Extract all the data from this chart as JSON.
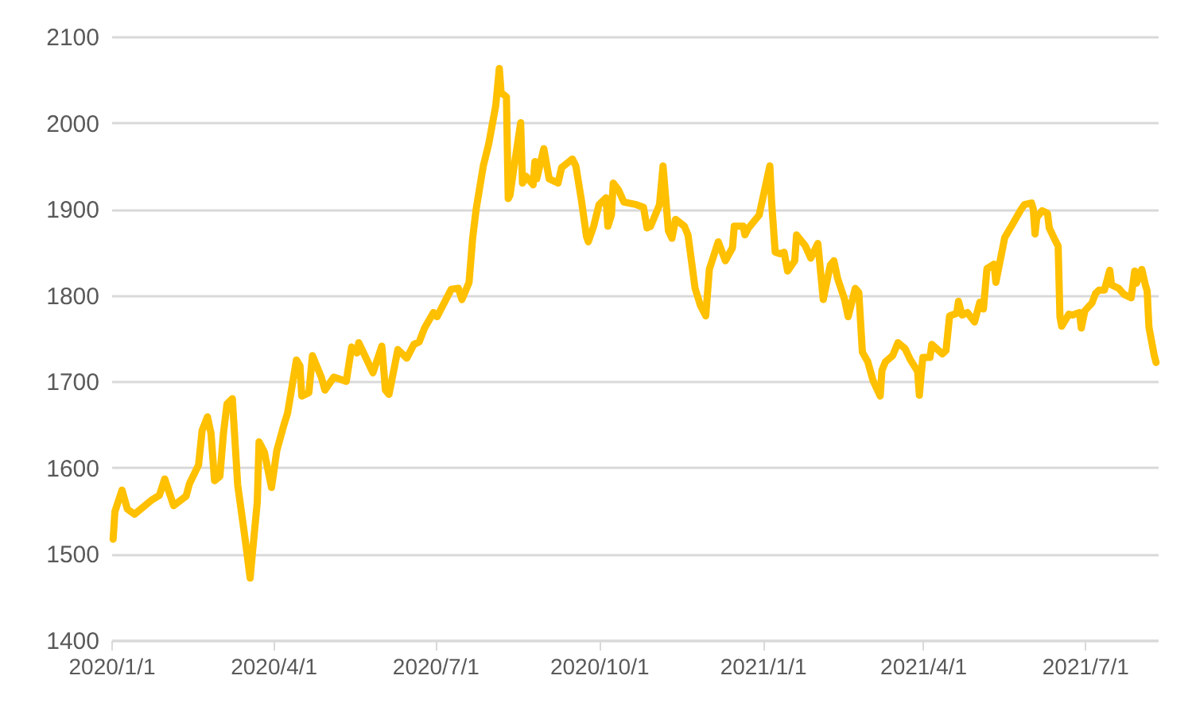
{
  "chart_data": {
    "type": "line",
    "xlim": [
      "2020-01-01",
      "2021-08-11"
    ],
    "ylim": [
      1400,
      2100
    ],
    "yticks": [
      1400,
      1500,
      1600,
      1700,
      1800,
      1900,
      2000,
      2100
    ],
    "xticks": [
      {
        "value": "2020-01-01",
        "label": "2020/1/1"
      },
      {
        "value": "2020-04-01",
        "label": "2020/4/1"
      },
      {
        "value": "2020-07-01",
        "label": "2020/7/1"
      },
      {
        "value": "2020-10-01",
        "label": "2020/10/1"
      },
      {
        "value": "2021-01-01",
        "label": "2021/1/1"
      },
      {
        "value": "2021-04-01",
        "label": "2021/4/1"
      },
      {
        "value": "2021-07-01",
        "label": "2021/7/1"
      }
    ],
    "grid": "y",
    "marker": "none",
    "line_style": "solid",
    "x": [
      "2020-01-02",
      "2020-01-03",
      "2020-01-07",
      "2020-01-10",
      "2020-01-14",
      "2020-01-21",
      "2020-01-24",
      "2020-01-28",
      "2020-01-31",
      "2020-02-05",
      "2020-02-12",
      "2020-02-14",
      "2020-02-19",
      "2020-02-21",
      "2020-02-24",
      "2020-02-26",
      "2020-02-28",
      "2020-03-02",
      "2020-03-04",
      "2020-03-06",
      "2020-03-09",
      "2020-03-12",
      "2020-03-16",
      "2020-03-19",
      "2020-03-20",
      "2020-03-23",
      "2020-03-24",
      "2020-03-27",
      "2020-03-31",
      "2020-04-03",
      "2020-04-07",
      "2020-04-09",
      "2020-04-14",
      "2020-04-16",
      "2020-04-17",
      "2020-04-21",
      "2020-04-23",
      "2020-04-28",
      "2020-04-30",
      "2020-05-05",
      "2020-05-08",
      "2020-05-12",
      "2020-05-15",
      "2020-05-18",
      "2020-05-19",
      "2020-05-22",
      "2020-05-27",
      "2020-06-01",
      "2020-06-03",
      "2020-06-05",
      "2020-06-10",
      "2020-06-15",
      "2020-06-19",
      "2020-06-22",
      "2020-06-25",
      "2020-06-30",
      "2020-07-02",
      "2020-07-07",
      "2020-07-10",
      "2020-07-14",
      "2020-07-16",
      "2020-07-20",
      "2020-07-22",
      "2020-07-24",
      "2020-07-28",
      "2020-07-31",
      "2020-08-04",
      "2020-08-06",
      "2020-08-07",
      "2020-08-10",
      "2020-08-11",
      "2020-08-12",
      "2020-08-14",
      "2020-08-18",
      "2020-08-19",
      "2020-08-21",
      "2020-08-25",
      "2020-08-26",
      "2020-08-27",
      "2020-08-31",
      "2020-09-03",
      "2020-09-08",
      "2020-09-10",
      "2020-09-16",
      "2020-09-18",
      "2020-09-21",
      "2020-09-24",
      "2020-09-25",
      "2020-09-28",
      "2020-10-01",
      "2020-10-05",
      "2020-10-06",
      "2020-10-08",
      "2020-10-09",
      "2020-10-12",
      "2020-10-15",
      "2020-10-22",
      "2020-10-26",
      "2020-10-28",
      "2020-10-30",
      "2020-11-04",
      "2020-11-06",
      "2020-11-09",
      "2020-11-11",
      "2020-11-13",
      "2020-11-18",
      "2020-11-20",
      "2020-11-24",
      "2020-11-27",
      "2020-11-30",
      "2020-12-02",
      "2020-12-07",
      "2020-12-11",
      "2020-12-15",
      "2020-12-16",
      "2020-12-21",
      "2020-12-22",
      "2020-12-24",
      "2020-12-30",
      "2021-01-05",
      "2021-01-06",
      "2021-01-08",
      "2021-01-11",
      "2021-01-13",
      "2021-01-15",
      "2021-01-19",
      "2021-01-20",
      "2021-01-25",
      "2021-01-28",
      "2021-02-01",
      "2021-02-04",
      "2021-02-08",
      "2021-02-10",
      "2021-02-12",
      "2021-02-16",
      "2021-02-18",
      "2021-02-22",
      "2021-02-24",
      "2021-02-26",
      "2021-03-01",
      "2021-03-04",
      "2021-03-08",
      "2021-03-09",
      "2021-03-11",
      "2021-03-15",
      "2021-03-18",
      "2021-03-22",
      "2021-03-25",
      "2021-03-29",
      "2021-03-30",
      "2021-03-31",
      "2021-04-01",
      "2021-04-05",
      "2021-04-06",
      "2021-04-12",
      "2021-04-14",
      "2021-04-16",
      "2021-04-20",
      "2021-04-21",
      "2021-04-23",
      "2021-04-26",
      "2021-04-30",
      "2021-05-03",
      "2021-05-05",
      "2021-05-07",
      "2021-05-11",
      "2021-05-12",
      "2021-05-17",
      "2021-05-21",
      "2021-05-26",
      "2021-05-28",
      "2021-06-01",
      "2021-06-02",
      "2021-06-03",
      "2021-06-04",
      "2021-06-07",
      "2021-06-10",
      "2021-06-11",
      "2021-06-14",
      "2021-06-16",
      "2021-06-17",
      "2021-06-18",
      "2021-06-22",
      "2021-06-24",
      "2021-06-28",
      "2021-06-29",
      "2021-07-01",
      "2021-07-05",
      "2021-07-07",
      "2021-07-09",
      "2021-07-12",
      "2021-07-15",
      "2021-07-16",
      "2021-07-20",
      "2021-07-23",
      "2021-07-27",
      "2021-07-29",
      "2021-07-30",
      "2021-08-02",
      "2021-08-04",
      "2021-08-05",
      "2021-08-06",
      "2021-08-09",
      "2021-08-10"
    ],
    "series": [
      {
        "color": "#ffc000",
        "values": [
          1517,
          1549,
          1574,
          1552,
          1546,
          1558,
          1563,
          1568,
          1587,
          1556,
          1567,
          1582,
          1603,
          1643,
          1659,
          1640,
          1585,
          1590,
          1640,
          1674,
          1680,
          1580,
          1520,
          1472,
          1495,
          1560,
          1630,
          1618,
          1577,
          1620,
          1650,
          1663,
          1725,
          1718,
          1683,
          1687,
          1730,
          1705,
          1690,
          1705,
          1703,
          1700,
          1740,
          1733,
          1745,
          1732,
          1710,
          1741,
          1690,
          1685,
          1737,
          1727,
          1743,
          1746,
          1762,
          1780,
          1775,
          1795,
          1807,
          1808,
          1795,
          1815,
          1866,
          1900,
          1950,
          1975,
          2020,
          2063,
          2035,
          2030,
          1912,
          1916,
          1945,
          2000,
          1930,
          1938,
          1928,
          1955,
          1935,
          1970,
          1935,
          1930,
          1948,
          1958,
          1950,
          1912,
          1868,
          1862,
          1880,
          1905,
          1913,
          1880,
          1893,
          1930,
          1922,
          1908,
          1905,
          1902,
          1878,
          1880,
          1905,
          1950,
          1875,
          1866,
          1888,
          1880,
          1870,
          1808,
          1788,
          1776,
          1830,
          1862,
          1840,
          1855,
          1880,
          1880,
          1870,
          1878,
          1893,
          1950,
          1908,
          1850,
          1848,
          1850,
          1828,
          1840,
          1870,
          1857,
          1843,
          1860,
          1795,
          1835,
          1840,
          1820,
          1795,
          1775,
          1808,
          1803,
          1734,
          1723,
          1701,
          1683,
          1713,
          1723,
          1730,
          1745,
          1738,
          1725,
          1712,
          1684,
          1708,
          1728,
          1728,
          1743,
          1732,
          1736,
          1776,
          1779,
          1793,
          1777,
          1780,
          1769,
          1792,
          1784,
          1831,
          1836,
          1815,
          1867,
          1881,
          1899,
          1905,
          1907,
          1900,
          1871,
          1890,
          1898,
          1895,
          1878,
          1865,
          1857,
          1775,
          1764,
          1778,
          1777,
          1780,
          1762,
          1782,
          1791,
          1802,
          1806,
          1806,
          1829,
          1812,
          1808,
          1801,
          1797,
          1828,
          1814,
          1830,
          1812,
          1805,
          1763,
          1730,
          1722
        ]
      }
    ]
  }
}
